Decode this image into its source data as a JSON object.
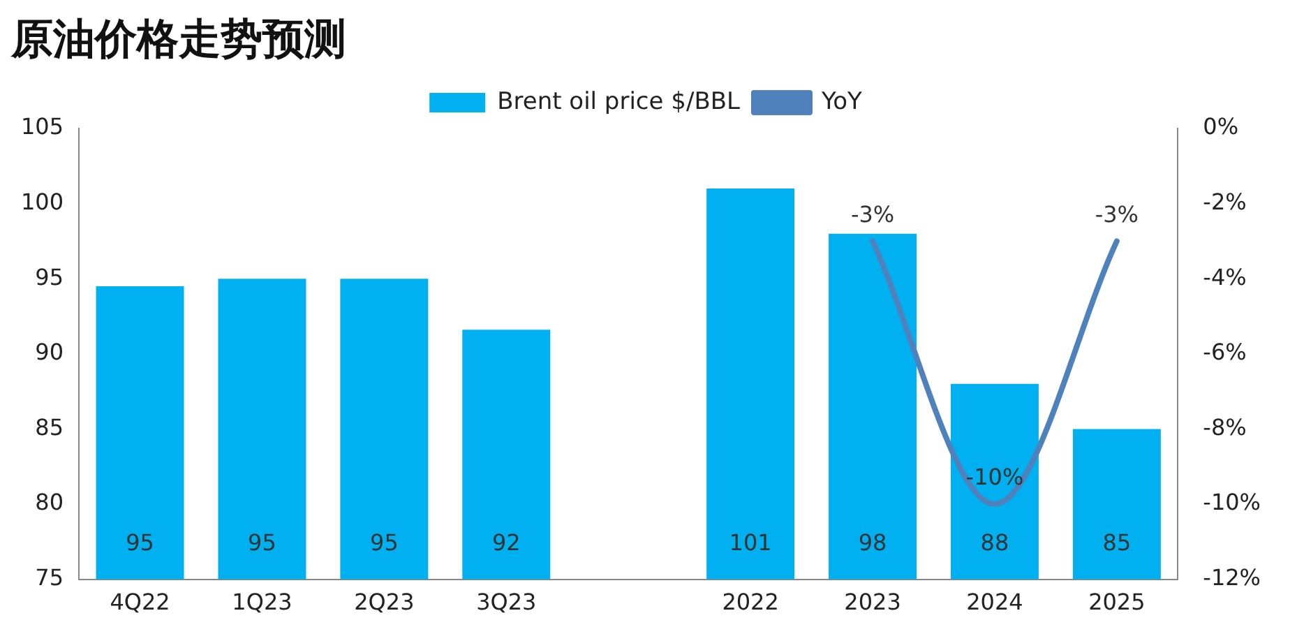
{
  "chart_data": {
    "type": "bar",
    "title": "原油价格走势预测",
    "categories": [
      "4Q22",
      "1Q23",
      "2Q23",
      "3Q23",
      null,
      "2022",
      "2023",
      "2024",
      "2025"
    ],
    "series": [
      {
        "name": "Brent oil price $/BBL",
        "color": "#00b0f0",
        "values": [
          94.5,
          95,
          95,
          91.6,
          null,
          101,
          98,
          88,
          85
        ],
        "value_labels": [
          "95",
          "95",
          "95",
          "92",
          null,
          "101",
          "98",
          "88",
          "85"
        ]
      },
      {
        "name": "YoY",
        "type": "line",
        "axis": "y2",
        "color": "#4f81bd",
        "values": [
          null,
          null,
          null,
          null,
          null,
          null,
          -3,
          -10,
          -3
        ],
        "value_labels": [
          null,
          null,
          null,
          null,
          null,
          null,
          "-3%",
          "-10%",
          "-3%"
        ]
      }
    ],
    "ylim": [
      75,
      105
    ],
    "yticks": [
      75,
      80,
      85,
      90,
      95,
      100,
      105
    ],
    "y2lim": [
      -12,
      0
    ],
    "y2ticks": [
      {
        "value": -12,
        "label": "-12%"
      },
      {
        "value": -10,
        "label": "-10%"
      },
      {
        "value": -8,
        "label": "-8%"
      },
      {
        "value": -6,
        "label": "-6%"
      },
      {
        "value": -4,
        "label": "-4%"
      },
      {
        "value": -2,
        "label": "-2%"
      },
      {
        "value": 0,
        "label": "0%"
      }
    ],
    "grid": false,
    "legend": "top",
    "marker": "none",
    "line_style": "solid"
  }
}
